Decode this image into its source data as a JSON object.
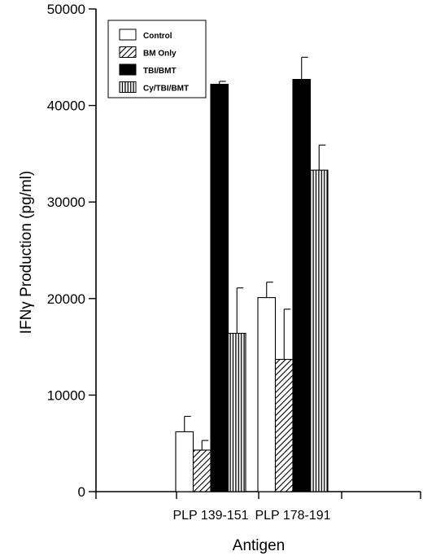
{
  "chart_data": {
    "type": "bar",
    "title": "",
    "xlabel": "Antigen",
    "ylabel": "IFNγ Production (pg/ml)",
    "ylim": [
      0,
      50000
    ],
    "yticks": [
      0,
      10000,
      20000,
      30000,
      40000,
      50000
    ],
    "categories": [
      "PLP 139-151",
      "PLP 178-191"
    ],
    "legend_position": "top-left",
    "grid": false,
    "series": [
      {
        "name": "Control",
        "pattern": "white",
        "values": [
          6200,
          20100
        ],
        "errors": [
          1600,
          1600
        ]
      },
      {
        "name": "BM Only",
        "pattern": "diagonal-hatch",
        "values": [
          4300,
          13700
        ],
        "errors": [
          1000,
          5200
        ]
      },
      {
        "name": "TBI/BMT",
        "pattern": "black",
        "values": [
          42200,
          42700
        ],
        "errors": [
          300,
          2300
        ]
      },
      {
        "name": "Cy/TBI/BMT",
        "pattern": "vertical-hatch",
        "values": [
          16400,
          33300
        ],
        "errors": [
          4700,
          2600
        ]
      }
    ]
  }
}
